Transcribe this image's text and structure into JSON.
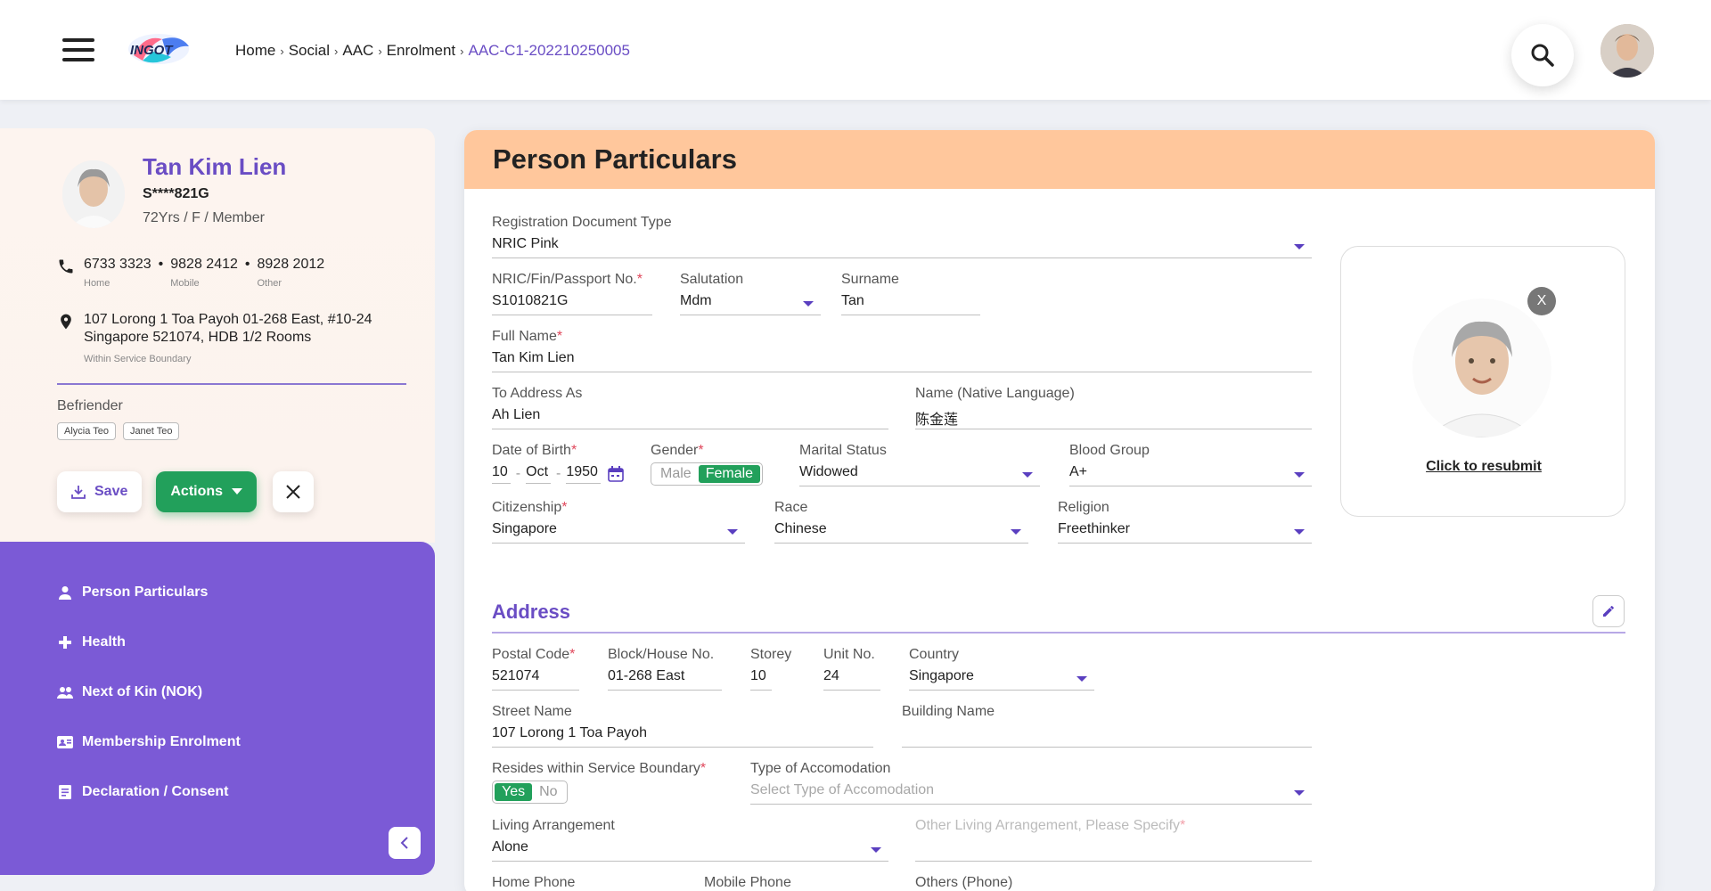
{
  "header": {
    "breadcrumb": [
      "Home",
      "Social",
      "AAC",
      "Enrolment",
      "AAC-C1-202210250005"
    ],
    "logo_text": "INGOT"
  },
  "profile": {
    "name": "Tan Kim Lien",
    "nric": "S****821G",
    "meta": "72Yrs / F / Member",
    "phones": [
      {
        "number": "6733 3323",
        "label": "Home"
      },
      {
        "number": "9828 2412",
        "label": "Mobile"
      },
      {
        "number": "8928 2012",
        "label": "Other"
      }
    ],
    "address_line1": "107 Lorong 1 Toa Payoh 01-268 East, #10-24",
    "address_line2": "Singapore 521074, HDB 1/2 Rooms",
    "address_note": "Within Service Boundary",
    "befriender_label": "Befriender",
    "befrienders": [
      "Alycia Teo",
      "Janet Teo"
    ],
    "save_label": "Save",
    "actions_label": "Actions"
  },
  "nav": {
    "items": [
      {
        "label": "Person Particulars",
        "icon": "person-icon"
      },
      {
        "label": "Health",
        "icon": "cross-icon"
      },
      {
        "label": "Next of Kin (NOK)",
        "icon": "people-icon"
      },
      {
        "label": "Membership Enrolment",
        "icon": "card-icon"
      },
      {
        "label": "Declaration / Consent",
        "icon": "document-icon"
      }
    ]
  },
  "main": {
    "title": "Person Particulars",
    "fields": {
      "reg_doc_type": {
        "label": "Registration Document Type",
        "value": "NRIC Pink"
      },
      "nric": {
        "label": "NRIC/Fin/Passport No.",
        "value": "S1010821G"
      },
      "salutation": {
        "label": "Salutation",
        "value": "Mdm"
      },
      "surname": {
        "label": "Surname",
        "value": "Tan"
      },
      "full_name": {
        "label": "Full Name",
        "value": "Tan Kim Lien"
      },
      "address_as": {
        "label": "To Address As",
        "value": "Ah Lien"
      },
      "native_name": {
        "label": "Name (Native Language)",
        "value": "陈金莲"
      },
      "dob": {
        "label": "Date of Birth",
        "day": "10",
        "month": "Oct",
        "year": "1950"
      },
      "gender": {
        "label": "Gender",
        "options": [
          "Male",
          "Female"
        ],
        "selected": "Female"
      },
      "marital": {
        "label": "Marital Status",
        "value": "Widowed"
      },
      "blood": {
        "label": "Blood Group",
        "value": "A+"
      },
      "citizenship": {
        "label": "Citizenship",
        "value": "Singapore"
      },
      "race": {
        "label": "Race",
        "value": "Chinese"
      },
      "religion": {
        "label": "Religion",
        "value": "Freethinker"
      }
    },
    "photo": {
      "close_label": "X",
      "resubmit_label": "Click to resubmit"
    },
    "address": {
      "title": "Address",
      "postal": {
        "label": "Postal Code",
        "value": "521074"
      },
      "block": {
        "label": "Block/House No.",
        "value": "01-268 East"
      },
      "storey": {
        "label": "Storey",
        "value": "10"
      },
      "unit": {
        "label": "Unit No.",
        "value": "24"
      },
      "country": {
        "label": "Country",
        "value": "Singapore"
      },
      "street": {
        "label": "Street Name",
        "value": "107 Lorong 1 Toa Payoh"
      },
      "building": {
        "label": "Building Name",
        "value": ""
      },
      "boundary": {
        "label": "Resides within Service Boundary",
        "options": [
          "Yes",
          "No"
        ],
        "selected": "Yes"
      },
      "accom": {
        "label": "Type of Accomodation",
        "placeholder": "Select Type of Accomodation"
      },
      "living": {
        "label": "Living Arrangement",
        "value": "Alone"
      },
      "other_living": {
        "label": "Other Living Arrangement, Please Specify"
      },
      "home_phone": {
        "label": "Home Phone"
      },
      "mobile_phone": {
        "label": "Mobile Phone"
      },
      "others_phone": {
        "label": "Others (Phone)"
      }
    }
  },
  "colors": {
    "accent": "#6a4dc4",
    "nav_bg": "#7b5ad6",
    "header_band": "#ffc79c",
    "success": "#22a05b"
  }
}
